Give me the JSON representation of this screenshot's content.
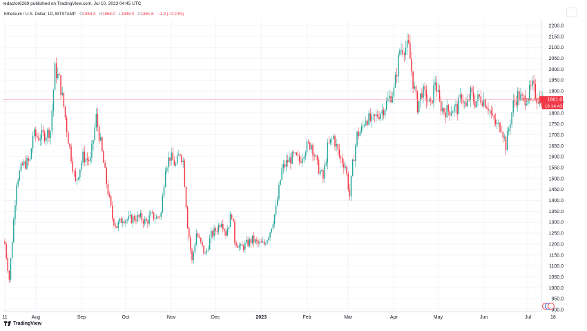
{
  "header": {
    "publish_line": "redactor6269 published on TradingView.com, Jul 10, 2023 04:45 UTC"
  },
  "legend": {
    "symbol": "Ethereum / U.S. Dollar, 1D, BITSTAMP",
    "o_key": "O",
    "o_val": "1863.4",
    "h_key": "H",
    "h_val": "1868.0",
    "l_key": "L",
    "l_val": "1848.0",
    "c_key": "C",
    "c_val": "1861.6",
    "change": "−1.9 (−0.10%)"
  },
  "footer": {
    "brand": "TradingView",
    "brand_icon": "tradingview-logo-icon"
  },
  "colors": {
    "up": "#26a69a",
    "down": "#f23645",
    "grid": "#f0f3fa",
    "price_line": "#f7a6ad"
  },
  "chart_data": {
    "type": "candlestick",
    "title": "Ethereum / U.S. Dollar, 1D, BITSTAMP",
    "ylim": [
      880,
      2230
    ],
    "y_ticks": [
      900,
      950,
      1000,
      1050,
      1100,
      1150,
      1200,
      1250,
      1300,
      1350,
      1400,
      1450,
      1500,
      1550,
      1600,
      1650,
      1700,
      1750,
      1800,
      1850,
      1900,
      1950,
      2000,
      2050,
      2100,
      2150,
      2200
    ],
    "x_labels": [
      {
        "label": "11",
        "index": 0
      },
      {
        "label": "Aug",
        "index": 21
      },
      {
        "label": "Sep",
        "index": 52
      },
      {
        "label": "Oct",
        "index": 82
      },
      {
        "label": "Nov",
        "index": 113
      },
      {
        "label": "Dec",
        "index": 143
      },
      {
        "label": "2023",
        "index": 174
      },
      {
        "label": "Feb",
        "index": 205
      },
      {
        "label": "Mar",
        "index": 233
      },
      {
        "label": "Apr",
        "index": 264
      },
      {
        "label": "May",
        "index": 294
      },
      {
        "label": "Jun",
        "index": 325
      },
      {
        "label": "Jul",
        "index": 355
      },
      {
        "label": "18",
        "index": 372
      }
    ],
    "current_price": {
      "symbol": "ETHUSD",
      "price": "1861.6",
      "countdown": "19:14:43"
    },
    "anchors": [
      [
        0,
        1200
      ],
      [
        3,
        1040
      ],
      [
        8,
        1490
      ],
      [
        12,
        1560
      ],
      [
        17,
        1580
      ],
      [
        19,
        1700
      ],
      [
        23,
        1690
      ],
      [
        27,
        1700
      ],
      [
        31,
        1720
      ],
      [
        34,
        2000
      ],
      [
        37,
        1950
      ],
      [
        40,
        1830
      ],
      [
        43,
        1680
      ],
      [
        48,
        1480
      ],
      [
        53,
        1600
      ],
      [
        58,
        1580
      ],
      [
        62,
        1780
      ],
      [
        65,
        1660
      ],
      [
        69,
        1480
      ],
      [
        73,
        1320
      ],
      [
        76,
        1280
      ],
      [
        80,
        1320
      ],
      [
        84,
        1310
      ],
      [
        88,
        1320
      ],
      [
        92,
        1320
      ],
      [
        96,
        1300
      ],
      [
        99,
        1330
      ],
      [
        103,
        1320
      ],
      [
        106,
        1340
      ],
      [
        109,
        1560
      ],
      [
        112,
        1600
      ],
      [
        116,
        1560
      ],
      [
        119,
        1620
      ],
      [
        121,
        1580
      ],
      [
        124,
        1290
      ],
      [
        127,
        1120
      ],
      [
        130,
        1250
      ],
      [
        133,
        1200
      ],
      [
        136,
        1150
      ],
      [
        140,
        1240
      ],
      [
        144,
        1270
      ],
      [
        147,
        1310
      ],
      [
        150,
        1250
      ],
      [
        154,
        1340
      ],
      [
        156,
        1220
      ],
      [
        160,
        1180
      ],
      [
        164,
        1200
      ],
      [
        168,
        1220
      ],
      [
        172,
        1200
      ],
      [
        176,
        1200
      ],
      [
        180,
        1260
      ],
      [
        184,
        1360
      ],
      [
        188,
        1540
      ],
      [
        192,
        1580
      ],
      [
        196,
        1600
      ],
      [
        200,
        1580
      ],
      [
        204,
        1640
      ],
      [
        208,
        1660
      ],
      [
        212,
        1560
      ],
      [
        216,
        1500
      ],
      [
        219,
        1640
      ],
      [
        223,
        1690
      ],
      [
        227,
        1600
      ],
      [
        231,
        1560
      ],
      [
        234,
        1420
      ],
      [
        236,
        1560
      ],
      [
        239,
        1700
      ],
      [
        242,
        1720
      ],
      [
        245,
        1780
      ],
      [
        249,
        1760
      ],
      [
        253,
        1790
      ],
      [
        257,
        1820
      ],
      [
        261,
        1870
      ],
      [
        264,
        1900
      ],
      [
        268,
        2090
      ],
      [
        271,
        2100
      ],
      [
        274,
        2100
      ],
      [
        277,
        1940
      ],
      [
        280,
        1830
      ],
      [
        283,
        1900
      ],
      [
        286,
        1870
      ],
      [
        289,
        1830
      ],
      [
        292,
        1950
      ],
      [
        295,
        1840
      ],
      [
        298,
        1810
      ],
      [
        301,
        1810
      ],
      [
        304,
        1820
      ],
      [
        307,
        1820
      ],
      [
        310,
        1880
      ],
      [
        313,
        1820
      ],
      [
        316,
        1890
      ],
      [
        319,
        1850
      ],
      [
        322,
        1870
      ],
      [
        325,
        1860
      ],
      [
        328,
        1830
      ],
      [
        331,
        1770
      ],
      [
        334,
        1740
      ],
      [
        337,
        1740
      ],
      [
        340,
        1650
      ],
      [
        342,
        1730
      ],
      [
        345,
        1840
      ],
      [
        348,
        1880
      ],
      [
        351,
        1860
      ],
      [
        354,
        1870
      ],
      [
        358,
        1920
      ],
      [
        361,
        1870
      ],
      [
        364,
        1861.6
      ]
    ]
  }
}
